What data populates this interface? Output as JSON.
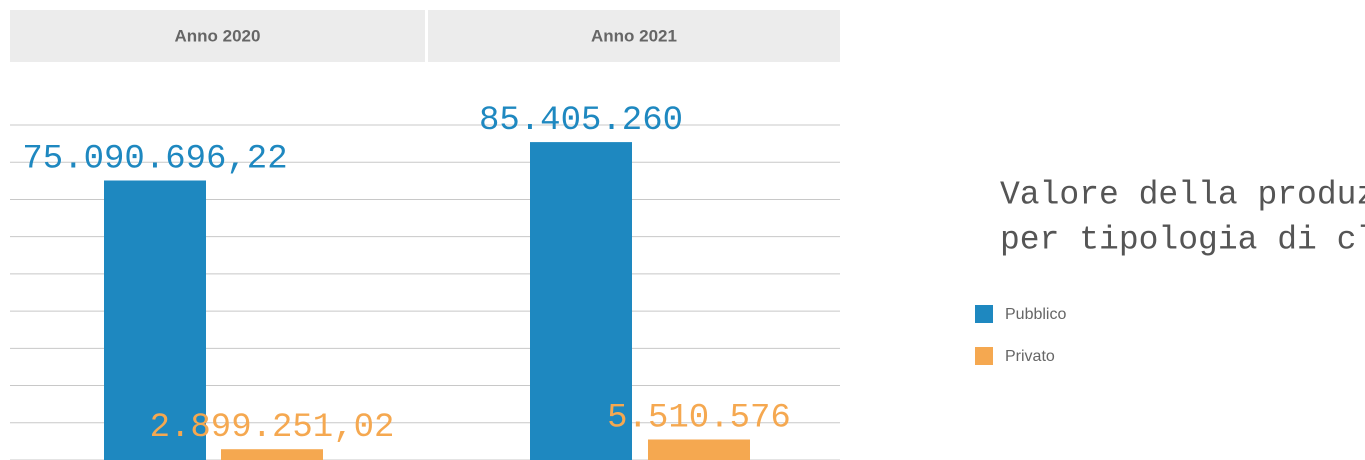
{
  "chart_data": {
    "type": "bar",
    "title": [
      "Valore della produzione",
      "per tipologia di cliente"
    ],
    "categories": [
      "Anno 2020",
      "Anno 2021"
    ],
    "series": [
      {
        "name": "Pubblico",
        "color": "#1e88c0",
        "values": [
          75090696.22,
          85405260
        ],
        "value_labels": [
          "75.090.696,22",
          "85.405.260"
        ]
      },
      {
        "name": "Privato",
        "color": "#f5a850",
        "values": [
          2899251.02,
          5510576
        ],
        "value_labels": [
          "2.899.251,02",
          "5.510.576"
        ]
      }
    ],
    "ylim": [
      0,
      90000000
    ],
    "yticks": [
      0,
      10000000,
      20000000,
      30000000,
      40000000,
      50000000,
      60000000,
      70000000,
      80000000,
      90000000
    ],
    "grid": true
  }
}
